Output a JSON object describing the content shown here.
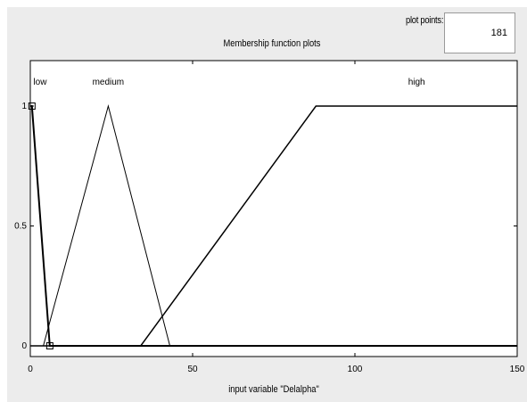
{
  "plot_points": {
    "label": "plot points:",
    "value": "181"
  },
  "chart_data": {
    "type": "line",
    "title": "Membership function plots",
    "xlabel": "input variable \"Delalpha\"",
    "ylabel": "",
    "xlim": [
      0,
      150
    ],
    "ylim": [
      0,
      1
    ],
    "xticks": [
      "0",
      "50",
      "100",
      "150"
    ],
    "yticks": [
      "0",
      "0.5",
      "1"
    ],
    "series": [
      {
        "name": "low",
        "points": [
          [
            0,
            1
          ],
          [
            0.5,
            1
          ],
          [
            6,
            0
          ],
          [
            150,
            0
          ]
        ],
        "color": "#000000"
      },
      {
        "name": "medium",
        "points": [
          [
            0,
            0
          ],
          [
            4,
            0
          ],
          [
            24,
            1
          ],
          [
            43,
            0
          ],
          [
            150,
            0
          ]
        ],
        "color": "#000000"
      },
      {
        "name": "high",
        "points": [
          [
            0,
            0
          ],
          [
            34,
            0
          ],
          [
            88,
            1
          ],
          [
            150,
            1
          ]
        ],
        "color": "#000000"
      }
    ],
    "markers": [
      [
        0.5,
        1
      ],
      [
        6,
        0
      ]
    ]
  }
}
